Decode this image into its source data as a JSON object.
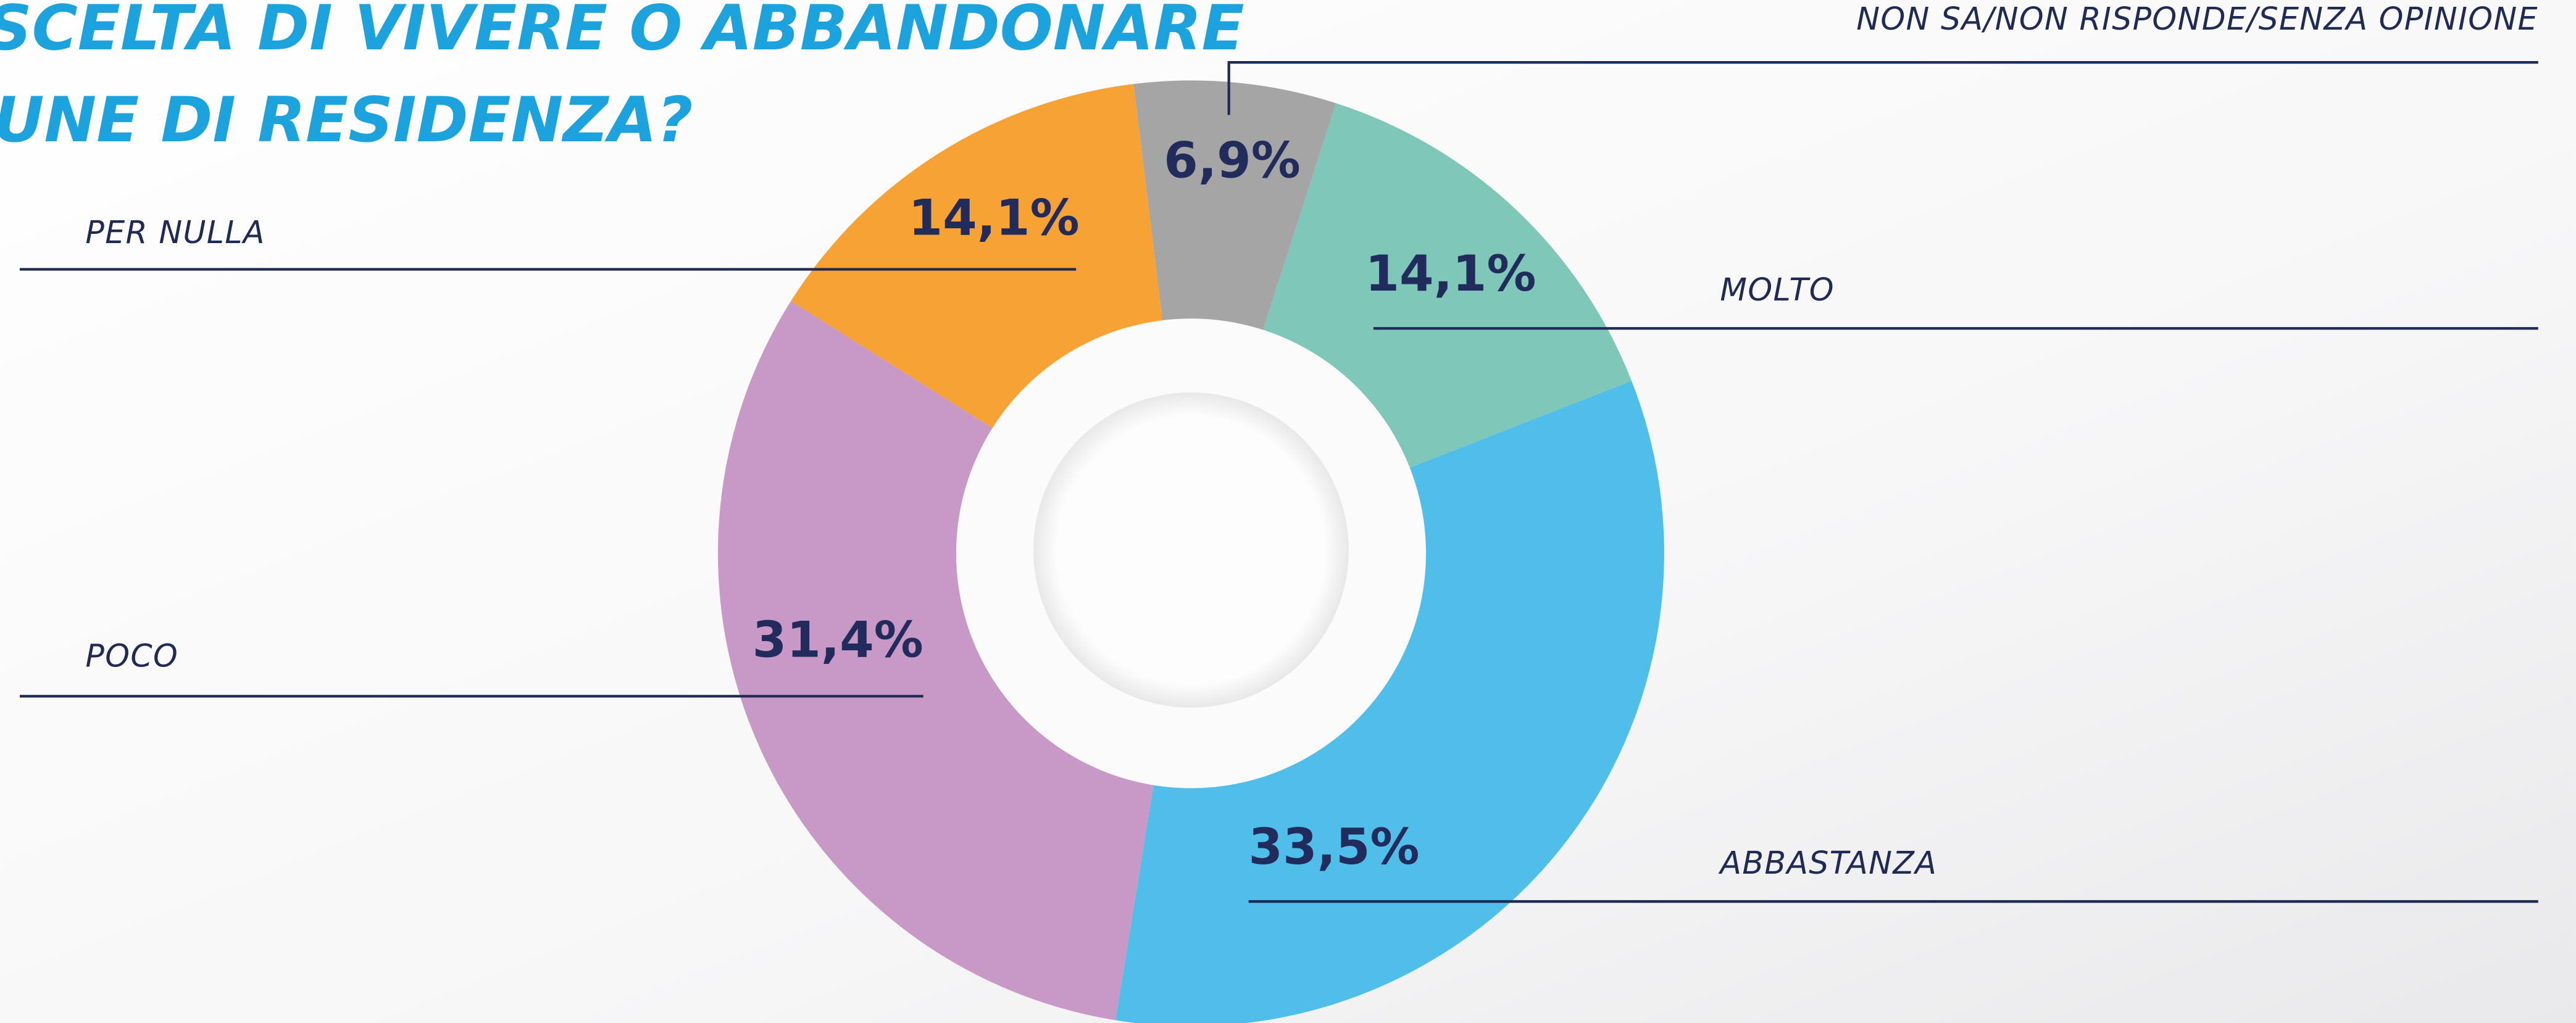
{
  "chart_data": {
    "type": "donut",
    "title": [
      "SCELTA DI VIVERE O ABBANDONARE",
      "UNE DI RESIDENZA?"
    ],
    "categories": [
      "NON SA/NON RISPONDE/SENZA OPINIONE",
      "MOLTO",
      "ABBASTANZA",
      "POCO",
      "PER NULLA"
    ],
    "values": [
      6.9,
      14.1,
      33.5,
      31.4,
      14.1
    ],
    "value_labels": [
      "6,9%",
      "14,1%",
      "33,5%",
      "31,4%",
      "14,1%"
    ],
    "colors": [
      "#a5a5a5",
      "#7fc7b9",
      "#4fbfea",
      "#c898c6",
      "#f6a234"
    ]
  }
}
